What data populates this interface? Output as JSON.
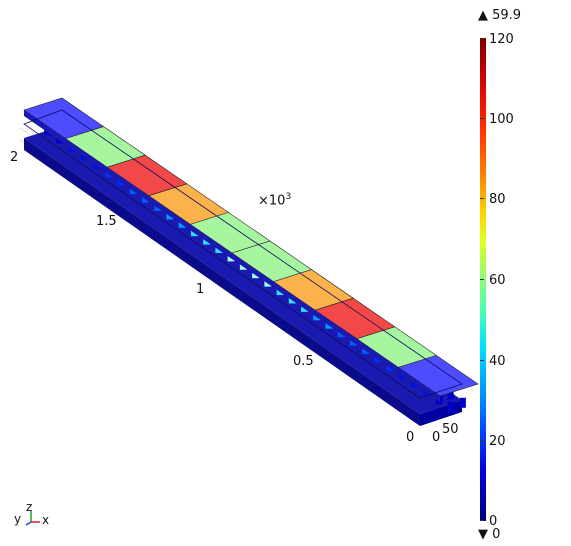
{
  "plot": {
    "axis_ticks": [
      "2",
      "1.5",
      "1",
      "0.5",
      "0",
      "0",
      "50"
    ],
    "axis_multiplier": "×10",
    "axis_multiplier_exp": "3",
    "colorbar_ticks": [
      "120",
      "100",
      "80",
      "60",
      "40",
      "20",
      "0"
    ],
    "max_marker": "▲ 59.9",
    "min_marker": "▼ 0",
    "colorbar_range": [
      0,
      120
    ],
    "triad_labels": {
      "y": "y",
      "z": "z",
      "x": "x"
    }
  },
  "colors": {
    "block_end": "#4d4dff",
    "block_green": "#a8f5a0",
    "block_red": "#f24848",
    "block_orange": "#fcb24a",
    "frame_dark": "#0a0a8a",
    "frame_mid": "#1a1ab0"
  }
}
